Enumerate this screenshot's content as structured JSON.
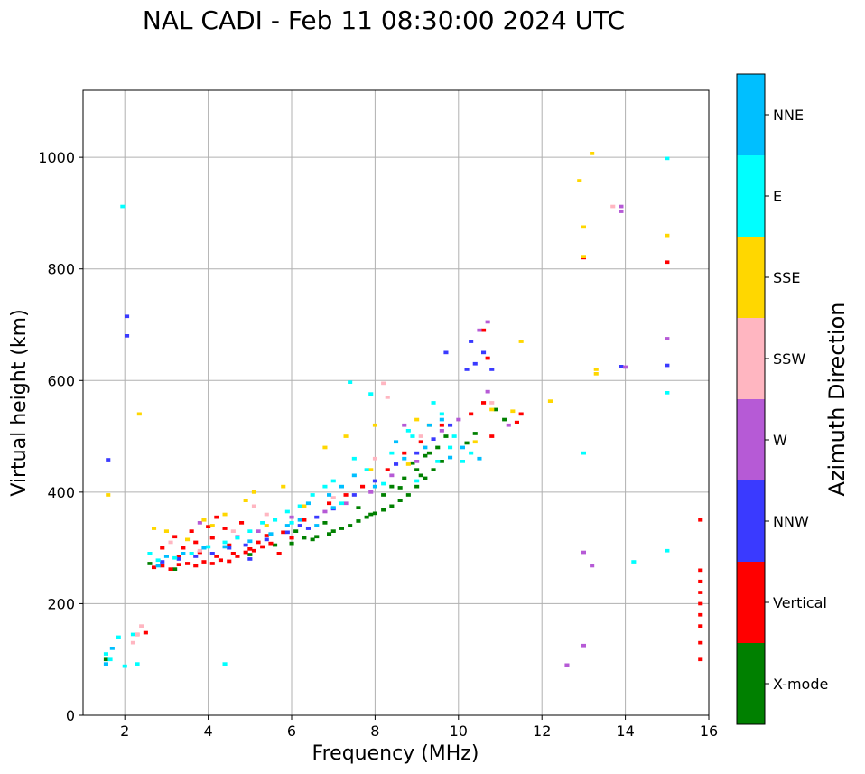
{
  "chart_data": {
    "type": "scatter",
    "title": "NAL CADI - Feb 11 08:30:00 2024 UTC",
    "xlabel": "Frequency (MHz)",
    "ylabel": "Virtual height (km)",
    "xlim": [
      1,
      16
    ],
    "ylim": [
      0,
      1120
    ],
    "xticks": [
      2,
      4,
      6,
      8,
      10,
      12,
      14,
      16
    ],
    "yticks": [
      0,
      200,
      400,
      600,
      800,
      1000
    ],
    "grid": true,
    "colorbar": {
      "label": "Azimuth Direction",
      "categories": [
        {
          "name": "X-mode",
          "color": "#008000"
        },
        {
          "name": "Vertical",
          "color": "#ff0000"
        },
        {
          "name": "NNW",
          "color": "#3a3aff"
        },
        {
          "name": "W",
          "color": "#b65ad6"
        },
        {
          "name": "SSW",
          "color": "#ffb6c1"
        },
        {
          "name": "SSE",
          "color": "#ffd700"
        },
        {
          "name": "E",
          "color": "#00ffff"
        },
        {
          "name": "NNE",
          "color": "#00bfff"
        }
      ]
    },
    "series": [
      {
        "name": "X-mode",
        "points": [
          [
            1.55,
            100
          ],
          [
            2.6,
            272
          ],
          [
            3.2,
            262
          ],
          [
            5.0,
            288
          ],
          [
            5.6,
            305
          ],
          [
            6.0,
            308
          ],
          [
            6.3,
            318
          ],
          [
            6.6,
            320
          ],
          [
            6.9,
            325
          ],
          [
            7.2,
            335
          ],
          [
            7.4,
            340
          ],
          [
            7.6,
            348
          ],
          [
            7.8,
            355
          ],
          [
            8.0,
            362
          ],
          [
            8.2,
            368
          ],
          [
            8.4,
            375
          ],
          [
            8.6,
            385
          ],
          [
            8.8,
            395
          ],
          [
            9.0,
            410
          ],
          [
            9.2,
            425
          ],
          [
            9.4,
            440
          ],
          [
            9.6,
            455
          ],
          [
            8.4,
            410
          ],
          [
            8.7,
            425
          ],
          [
            9.0,
            440
          ],
          [
            9.2,
            465
          ],
          [
            9.5,
            480
          ],
          [
            9.7,
            500
          ],
          [
            10.2,
            488
          ],
          [
            10.4,
            505
          ],
          [
            11.1,
            530
          ],
          [
            10.9,
            548
          ],
          [
            6.1,
            330
          ],
          [
            6.8,
            345
          ],
          [
            7.6,
            372
          ],
          [
            8.2,
            395
          ],
          [
            8.9,
            452
          ],
          [
            9.3,
            470
          ],
          [
            6.5,
            315
          ],
          [
            7.0,
            330
          ],
          [
            7.9,
            360
          ],
          [
            8.6,
            408
          ],
          [
            9.1,
            430
          ]
        ]
      },
      {
        "name": "Vertical",
        "points": [
          [
            2.3,
            145
          ],
          [
            2.5,
            148
          ],
          [
            2.7,
            265
          ],
          [
            2.9,
            268
          ],
          [
            3.1,
            262
          ],
          [
            3.3,
            270
          ],
          [
            3.5,
            272
          ],
          [
            3.7,
            268
          ],
          [
            3.9,
            275
          ],
          [
            4.1,
            272
          ],
          [
            4.3,
            278
          ],
          [
            4.5,
            276
          ],
          [
            4.7,
            285
          ],
          [
            4.9,
            292
          ],
          [
            5.1,
            295
          ],
          [
            5.3,
            302
          ],
          [
            5.5,
            308
          ],
          [
            3.4,
            300
          ],
          [
            3.8,
            292
          ],
          [
            4.2,
            285
          ],
          [
            4.6,
            290
          ],
          [
            5.0,
            298
          ],
          [
            3.6,
            330
          ],
          [
            4.0,
            338
          ],
          [
            4.4,
            335
          ],
          [
            3.2,
            320
          ],
          [
            4.2,
            355
          ],
          [
            4.8,
            345
          ],
          [
            5.4,
            322
          ],
          [
            5.8,
            328
          ],
          [
            6.3,
            350
          ],
          [
            6.9,
            380
          ],
          [
            7.3,
            395
          ],
          [
            7.7,
            410
          ],
          [
            8.3,
            440
          ],
          [
            8.7,
            470
          ],
          [
            9.1,
            490
          ],
          [
            9.6,
            520
          ],
          [
            10.3,
            540
          ],
          [
            10.6,
            560
          ],
          [
            10.7,
            640
          ],
          [
            10.6,
            690
          ],
          [
            11.4,
            525
          ],
          [
            11.5,
            540
          ],
          [
            10.8,
            500
          ],
          [
            13.0,
            820
          ],
          [
            15.0,
            812
          ],
          [
            15.8,
            350
          ],
          [
            15.8,
            260
          ],
          [
            15.8,
            240
          ],
          [
            15.8,
            220
          ],
          [
            15.8,
            200
          ],
          [
            15.8,
            180
          ],
          [
            15.8,
            160
          ],
          [
            15.8,
            130
          ],
          [
            15.8,
            100
          ],
          [
            2.9,
            300
          ],
          [
            3.3,
            285
          ],
          [
            3.7,
            310
          ],
          [
            4.1,
            318
          ],
          [
            4.5,
            305
          ],
          [
            5.2,
            310
          ],
          [
            6.0,
            318
          ],
          [
            5.7,
            290
          ]
        ]
      },
      {
        "name": "NNW",
        "points": [
          [
            2.05,
            715
          ],
          [
            2.05,
            680
          ],
          [
            1.6,
            458
          ],
          [
            2.9,
            275
          ],
          [
            3.3,
            280
          ],
          [
            3.7,
            285
          ],
          [
            4.1,
            290
          ],
          [
            4.5,
            300
          ],
          [
            4.9,
            305
          ],
          [
            5.4,
            315
          ],
          [
            5.9,
            328
          ],
          [
            6.2,
            340
          ],
          [
            6.6,
            355
          ],
          [
            7.0,
            370
          ],
          [
            7.5,
            395
          ],
          [
            8.0,
            420
          ],
          [
            8.5,
            450
          ],
          [
            9.0,
            470
          ],
          [
            9.4,
            495
          ],
          [
            9.8,
            520
          ],
          [
            10.2,
            620
          ],
          [
            10.4,
            630
          ],
          [
            10.3,
            670
          ],
          [
            10.6,
            650
          ],
          [
            10.8,
            620
          ],
          [
            13.9,
            625
          ],
          [
            15.0,
            627
          ],
          [
            9.7,
            650
          ],
          [
            5.0,
            280
          ],
          [
            6.4,
            335
          ]
        ]
      },
      {
        "name": "W",
        "points": [
          [
            10.7,
            705
          ],
          [
            10.5,
            690
          ],
          [
            13.0,
            292
          ],
          [
            13.2,
            268
          ],
          [
            13.0,
            125
          ],
          [
            12.6,
            90
          ],
          [
            13.9,
            912
          ],
          [
            13.9,
            903
          ],
          [
            15.0,
            675
          ],
          [
            14.0,
            624
          ],
          [
            6.0,
            355
          ],
          [
            6.8,
            365
          ],
          [
            7.3,
            380
          ],
          [
            7.9,
            400
          ],
          [
            8.4,
            430
          ],
          [
            9.0,
            455
          ],
          [
            9.6,
            510
          ],
          [
            10.0,
            530
          ],
          [
            10.7,
            580
          ],
          [
            11.2,
            520
          ],
          [
            4.7,
            320
          ],
          [
            5.2,
            330
          ],
          [
            3.8,
            345
          ],
          [
            8.7,
            520
          ]
        ]
      },
      {
        "name": "SSW",
        "points": [
          [
            2.4,
            160
          ],
          [
            2.3,
            145
          ],
          [
            2.2,
            130
          ],
          [
            8.2,
            595
          ],
          [
            8.3,
            570
          ],
          [
            5.1,
            375
          ],
          [
            4.6,
            330
          ],
          [
            3.8,
            295
          ],
          [
            3.1,
            310
          ],
          [
            7.0,
            390
          ],
          [
            8.0,
            460
          ],
          [
            9.1,
            500
          ],
          [
            10.8,
            560
          ],
          [
            13.7,
            912
          ],
          [
            5.4,
            360
          ]
        ]
      },
      {
        "name": "SSE",
        "points": [
          [
            1.6,
            395
          ],
          [
            2.35,
            540
          ],
          [
            13.2,
            1007
          ],
          [
            12.9,
            958
          ],
          [
            13.0,
            875
          ],
          [
            13.0,
            822
          ],
          [
            13.3,
            620
          ],
          [
            13.3,
            612
          ],
          [
            15.0,
            860
          ],
          [
            12.2,
            563
          ],
          [
            11.5,
            670
          ],
          [
            9.0,
            530
          ],
          [
            9.3,
            520
          ],
          [
            8.0,
            520
          ],
          [
            7.3,
            500
          ],
          [
            6.8,
            480
          ],
          [
            5.8,
            410
          ],
          [
            5.1,
            400
          ],
          [
            4.9,
            385
          ],
          [
            4.4,
            360
          ],
          [
            3.9,
            350
          ],
          [
            3.0,
            330
          ],
          [
            2.7,
            335
          ],
          [
            6.3,
            375
          ],
          [
            7.9,
            440
          ],
          [
            10.4,
            490
          ],
          [
            10.8,
            548
          ],
          [
            11.3,
            545
          ],
          [
            8.8,
            450
          ],
          [
            5.4,
            340
          ],
          [
            4.1,
            340
          ],
          [
            3.5,
            315
          ]
        ]
      },
      {
        "name": "E",
        "points": [
          [
            1.55,
            110
          ],
          [
            1.65,
            100
          ],
          [
            1.85,
            140
          ],
          [
            2.0,
            88
          ],
          [
            2.3,
            92
          ],
          [
            2.2,
            145
          ],
          [
            1.95,
            912
          ],
          [
            4.4,
            92
          ],
          [
            7.4,
            597
          ],
          [
            7.9,
            576
          ],
          [
            8.8,
            510
          ],
          [
            9.4,
            560
          ],
          [
            9.6,
            540
          ],
          [
            9.8,
            480
          ],
          [
            9.9,
            500
          ],
          [
            10.1,
            455
          ],
          [
            10.3,
            470
          ],
          [
            9.5,
            455
          ],
          [
            8.9,
            500
          ],
          [
            8.4,
            470
          ],
          [
            7.8,
            440
          ],
          [
            7.5,
            460
          ],
          [
            7.0,
            420
          ],
          [
            6.8,
            410
          ],
          [
            6.5,
            395
          ],
          [
            6.2,
            375
          ],
          [
            5.9,
            365
          ],
          [
            5.6,
            350
          ],
          [
            5.3,
            345
          ],
          [
            5.0,
            330
          ],
          [
            4.7,
            318
          ],
          [
            4.4,
            310
          ],
          [
            4.0,
            302
          ],
          [
            3.6,
            290
          ],
          [
            3.2,
            282
          ],
          [
            2.8,
            278
          ],
          [
            2.6,
            290
          ],
          [
            13.0,
            470
          ],
          [
            15.0,
            295
          ],
          [
            15.0,
            578
          ],
          [
            14.2,
            275
          ],
          [
            15.0,
            998
          ],
          [
            9.0,
            420
          ],
          [
            8.2,
            415
          ],
          [
            7.2,
            380
          ],
          [
            6.0,
            345
          ]
        ]
      },
      {
        "name": "NNE",
        "points": [
          [
            1.55,
            92
          ],
          [
            1.7,
            120
          ],
          [
            9.3,
            520
          ],
          [
            9.6,
            530
          ],
          [
            9.2,
            480
          ],
          [
            8.7,
            460
          ],
          [
            7.5,
            430
          ],
          [
            7.2,
            410
          ],
          [
            6.9,
            395
          ],
          [
            6.4,
            380
          ],
          [
            6.2,
            350
          ],
          [
            5.9,
            340
          ],
          [
            5.5,
            325
          ],
          [
            5.0,
            312
          ],
          [
            4.4,
            302
          ],
          [
            3.9,
            300
          ],
          [
            3.4,
            290
          ],
          [
            3.0,
            285
          ],
          [
            2.8,
            268
          ],
          [
            8.5,
            490
          ],
          [
            9.8,
            462
          ],
          [
            10.1,
            480
          ],
          [
            10.5,
            460
          ],
          [
            8.0,
            410
          ],
          [
            7.0,
            372
          ],
          [
            6.6,
            340
          ]
        ]
      }
    ]
  }
}
